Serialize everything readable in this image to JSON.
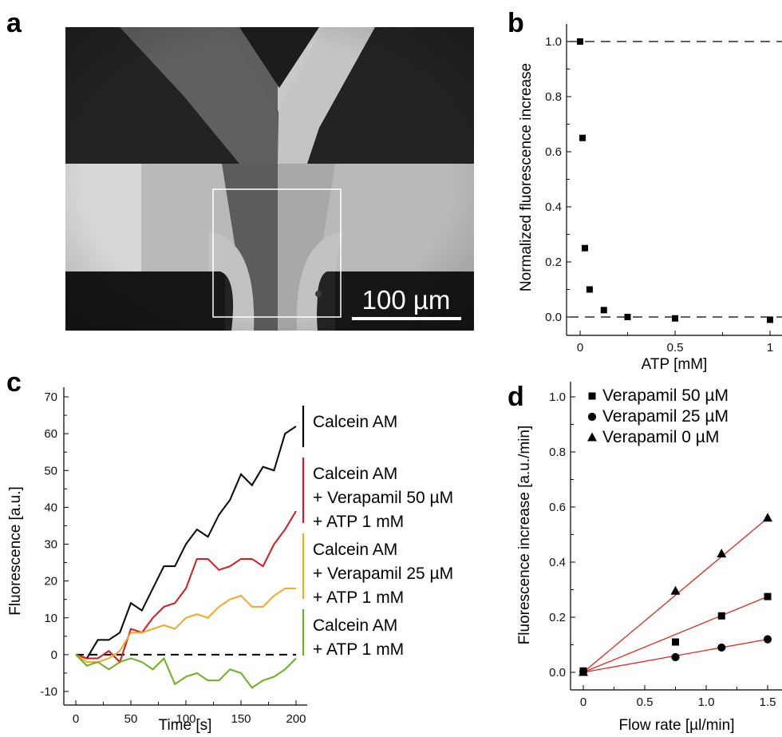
{
  "panels": {
    "a": {
      "letter": "a",
      "scalebar_label": "100 µm"
    },
    "b": {
      "letter": "b"
    },
    "c": {
      "letter": "c"
    },
    "d": {
      "letter": "d"
    }
  },
  "chart_data": [
    {
      "panel": "b",
      "type": "scatter",
      "xlabel": "ATP [mM]",
      "ylabel": "Normalized fluorescence increase",
      "xlim": [
        0,
        1
      ],
      "ylim": [
        0.0,
        1.0
      ],
      "xticks": [
        "0",
        "0.5",
        "1"
      ],
      "yticks": [
        "0.0",
        "0.2",
        "0.4",
        "0.6",
        "0.8",
        "1.0"
      ],
      "reference_lines": [
        1.0,
        0.0
      ],
      "series": [
        {
          "marker": "square",
          "points": [
            [
              0,
              1.0
            ],
            [
              0.0125,
              0.65
            ],
            [
              0.025,
              0.25
            ],
            [
              0.05,
              0.1
            ],
            [
              0.125,
              0.025
            ],
            [
              0.25,
              0.0
            ],
            [
              0.5,
              -0.005
            ],
            [
              1.0,
              -0.01
            ]
          ]
        }
      ]
    },
    {
      "panel": "c",
      "type": "line",
      "xlabel": "Time [s]",
      "ylabel": "Fluorescence [a.u.]",
      "xlim": [
        0,
        200
      ],
      "ylim": [
        -10,
        70
      ],
      "xticks": [
        "0",
        "50",
        "100",
        "150",
        "200"
      ],
      "yticks": [
        "-10",
        "0",
        "10",
        "20",
        "30",
        "40",
        "50",
        "60",
        "70"
      ],
      "reference_line": 0,
      "x": [
        0,
        10,
        20,
        30,
        40,
        50,
        60,
        70,
        80,
        90,
        100,
        110,
        120,
        130,
        140,
        150,
        160,
        170,
        180,
        190,
        200
      ],
      "series": [
        {
          "color": "#000000",
          "values": [
            0,
            -1,
            4,
            4,
            6,
            14,
            12,
            18,
            24,
            24,
            30,
            34,
            32,
            38,
            42,
            49,
            46,
            51,
            50,
            60,
            62
          ]
        },
        {
          "color": "#d7191c",
          "values": [
            0,
            -1,
            -1,
            1,
            -2,
            7,
            6,
            10,
            13,
            14,
            18,
            26,
            26,
            23,
            24,
            26,
            26,
            24,
            30,
            34,
            39
          ]
        },
        {
          "color": "#f5a623",
          "values": [
            0,
            -2,
            -2,
            -1,
            1,
            6,
            6,
            7,
            8,
            7,
            10,
            11,
            10,
            13,
            15,
            16,
            13,
            13,
            16,
            18,
            18
          ]
        },
        {
          "color": "#6ab023",
          "values": [
            0,
            -3,
            -2,
            -4,
            -2,
            -1,
            -2,
            -4,
            -1,
            -8,
            -6,
            -5,
            -7,
            -7,
            -4,
            -5,
            -9,
            -7,
            -6,
            -4,
            -1
          ]
        }
      ],
      "legend": [
        {
          "color": "#000000",
          "lines": [
            "Calcein AM"
          ]
        },
        {
          "color": "#d7191c",
          "lines": [
            "Calcein AM",
            "+ Verapamil 50 µM",
            "+ ATP 1 mM"
          ]
        },
        {
          "color": "#f5a623",
          "lines": [
            "Calcein AM",
            "+ Verapamil 25 µM",
            "+ ATP 1 mM"
          ]
        },
        {
          "color": "#6ab023",
          "lines": [
            "Calcein AM",
            "+ ATP 1 mM"
          ]
        }
      ]
    },
    {
      "panel": "d",
      "type": "scatter",
      "xlabel": "Flow rate [µl/min]",
      "ylabel": "Fluorescence increase [a.u./min]",
      "xlim": [
        0,
        1.5
      ],
      "ylim": [
        0.0,
        1.0
      ],
      "xticks": [
        "0",
        "0.5",
        "1.0",
        "1.5"
      ],
      "yticks": [
        "0.0",
        "0.2",
        "0.4",
        "0.6",
        "0.8",
        "1.0"
      ],
      "fit_color": "#e0281e",
      "series": [
        {
          "name": "Verapamil 50 µM",
          "marker": "square",
          "points": [
            [
              0,
              0.005
            ],
            [
              0.75,
              0.11
            ],
            [
              1.125,
              0.205
            ],
            [
              1.5,
              0.275
            ]
          ]
        },
        {
          "name": "Verapamil 25 µM",
          "marker": "circle",
          "points": [
            [
              0,
              0.003
            ],
            [
              0.75,
              0.055
            ],
            [
              1.125,
              0.09
            ],
            [
              1.5,
              0.12
            ]
          ]
        },
        {
          "name": "Verapamil 0 µM",
          "marker": "triangle",
          "points": [
            [
              0,
              0.0
            ],
            [
              0.75,
              0.295
            ],
            [
              1.125,
              0.43
            ],
            [
              1.5,
              0.56
            ]
          ]
        }
      ]
    }
  ]
}
